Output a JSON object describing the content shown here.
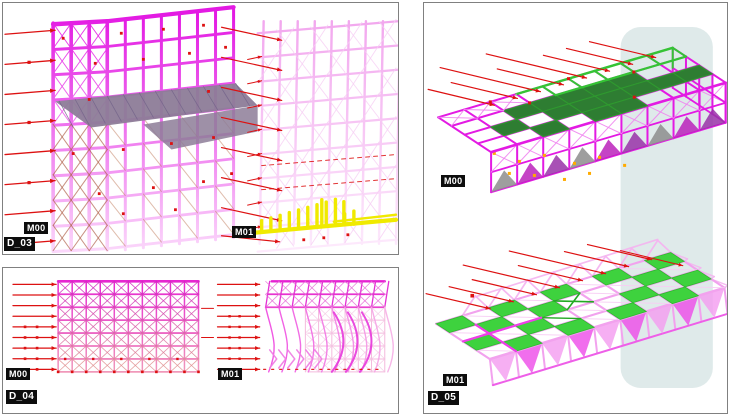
{
  "figure": {
    "panels": [
      {
        "id": "D_03",
        "model_labels": [
          "M00",
          "M01"
        ]
      },
      {
        "id": "D_04",
        "model_labels": [
          "M00",
          "M01"
        ]
      },
      {
        "id": "D_05",
        "model_labels": [
          "M00",
          "M01"
        ]
      }
    ]
  },
  "colors": {
    "magenta": "#e31ae3",
    "magenta_deep": "#cc1fcc",
    "pink_light": "#f2a6ee",
    "pink_faint": "#fbd9fb",
    "red": "#dd1111",
    "yellow": "#f0ea00",
    "slab_gray": "#8d7c98",
    "green": "#35c435",
    "green_dark": "#2e7d32",
    "green_bright": "#3ed23e",
    "overlay": "#dce8e8",
    "label_bg": "#0d0d0d",
    "label_fg": "#ffffff",
    "panel_border": "#808080",
    "background": "#ffffff"
  }
}
